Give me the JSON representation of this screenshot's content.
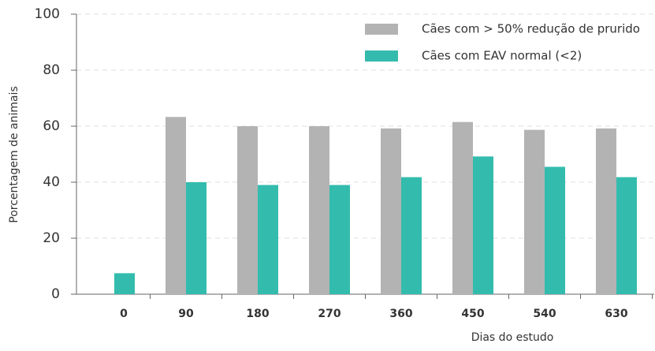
{
  "chart_data": {
    "type": "bar",
    "x_label": "Dias do estudo",
    "y_label": "Porcentagem de animais",
    "categories": [
      "0",
      "90",
      "180",
      "270",
      "360",
      "450",
      "540",
      "630"
    ],
    "series": [
      {
        "name": "Cães com > 50% redução de prurido",
        "color": "#b3b3b3",
        "values": [
          null,
          63.3,
          60,
          60,
          59.2,
          61.5,
          58.7,
          59.2
        ]
      },
      {
        "name": "Cães com EAV normal (<2)",
        "color": "#33bcad",
        "values": [
          7.5,
          40,
          39,
          39,
          41.8,
          49.2,
          45.5,
          41.8
        ]
      }
    ],
    "ylim": [
      0,
      100
    ],
    "yticks": [
      0,
      20,
      40,
      60,
      80,
      100
    ],
    "grid": true,
    "legend": "top-right"
  }
}
